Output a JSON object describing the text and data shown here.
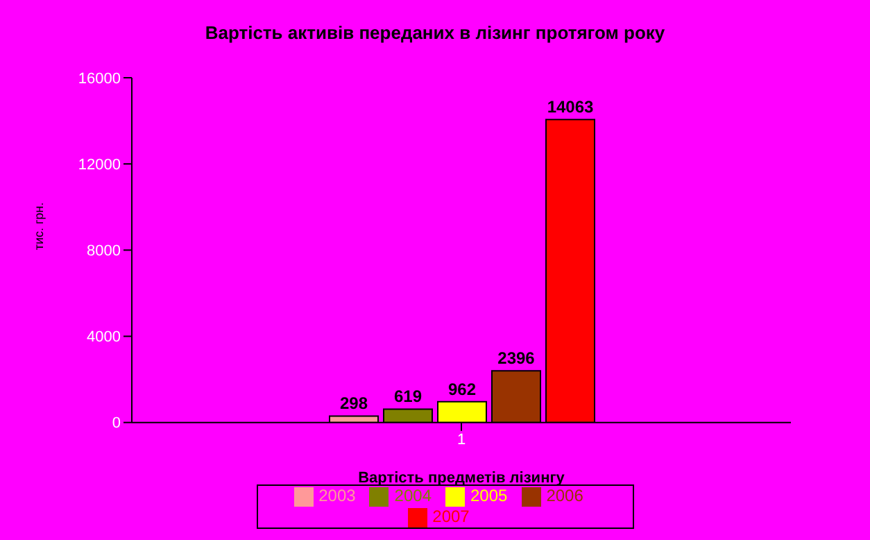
{
  "chart_data": {
    "type": "bar",
    "title": "Вартість активів переданих в лізинг протягом року",
    "xlabel": "Вартість предметів лізингу",
    "ylabel": "тис. грн.",
    "categories": [
      "1"
    ],
    "series": [
      {
        "name": "2003",
        "color": "#ff9999",
        "values": [
          298
        ]
      },
      {
        "name": "2004",
        "color": "#808000",
        "values": [
          619
        ]
      },
      {
        "name": "2005",
        "color": "#ffff00",
        "values": [
          962
        ]
      },
      {
        "name": "2006",
        "color": "#993300",
        "values": [
          2396
        ]
      },
      {
        "name": "2007",
        "color": "#ff0000",
        "values": [
          14063
        ]
      }
    ],
    "ylim": [
      0,
      16000
    ],
    "yticks": [
      0,
      4000,
      8000,
      12000,
      16000
    ],
    "data_labels": true,
    "legend": "bottom",
    "grid": false
  }
}
